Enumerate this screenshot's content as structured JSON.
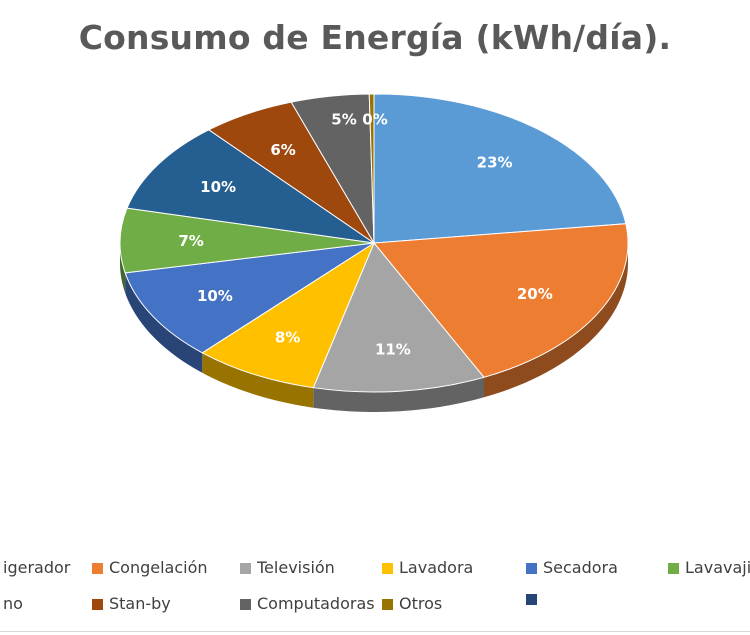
{
  "chart_data": {
    "type": "pie",
    "title": "Consumo de Energía (kWh/día).",
    "slices": [
      {
        "label": "Refrigerador",
        "value": 23,
        "display": "23%",
        "color": "#5B9BD5"
      },
      {
        "label": "Congelación",
        "value": 20,
        "display": "20%",
        "color": "#ED7D31"
      },
      {
        "label": "Televisión",
        "value": 11,
        "display": "11%",
        "color": "#A5A5A5"
      },
      {
        "label": "Lavadora",
        "value": 8,
        "display": "8%",
        "color": "#FFC000"
      },
      {
        "label": "Secadora",
        "value": 10,
        "display": "10%",
        "color": "#4472C4"
      },
      {
        "label": "Lavavajillas",
        "value": 7,
        "display": "7%",
        "color": "#70AD47"
      },
      {
        "label": "Horno",
        "value": 10,
        "display": "10%",
        "color": "#255E91"
      },
      {
        "label": "Stan-by",
        "value": 6,
        "display": "6%",
        "color": "#9E480E"
      },
      {
        "label": "Computadoras",
        "value": 5,
        "display": "5%",
        "color": "#636363"
      },
      {
        "label": "Otros",
        "value": 0.3,
        "display": "0%",
        "color": "#997300"
      },
      {
        "label": "",
        "value": 0,
        "display": "",
        "color": "#264478"
      }
    ],
    "legend_position": "bottom",
    "legend_visible_text": [
      "igerador",
      "Congelación",
      "Televisión",
      "Lavadora",
      "Secadora",
      "Lavavajil",
      "no",
      "Stan-by",
      "Computadoras",
      "Otros",
      ""
    ]
  }
}
